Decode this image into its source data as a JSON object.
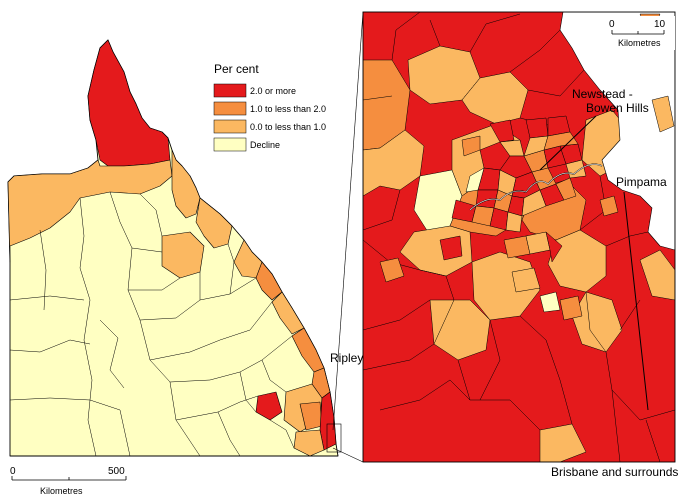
{
  "legend": {
    "title": "Per cent",
    "items": [
      {
        "label": "2.0 or more",
        "color": "#e41a1c"
      },
      {
        "label": "1.0 to less than 2.0",
        "color": "#f58e3f"
      },
      {
        "label": "0.0 to less than 1.0",
        "color": "#fbb861"
      },
      {
        "label": "Decline",
        "color": "#ffffc2"
      }
    ]
  },
  "state_scale": {
    "zero": "0",
    "value": "500",
    "unit": "Kilometres"
  },
  "inset_scale": {
    "zero": "0",
    "value": "10",
    "unit": "Kilometres"
  },
  "labels": {
    "newstead_1": "Newstead -",
    "newstead_2": "Bowen Hills",
    "pimpama": "Pimpama",
    "ripley": "Ripley",
    "inset_title": "Brisbane and surrounds"
  },
  "colors": {
    "outline": "#000000",
    "water": "#ffffff"
  }
}
